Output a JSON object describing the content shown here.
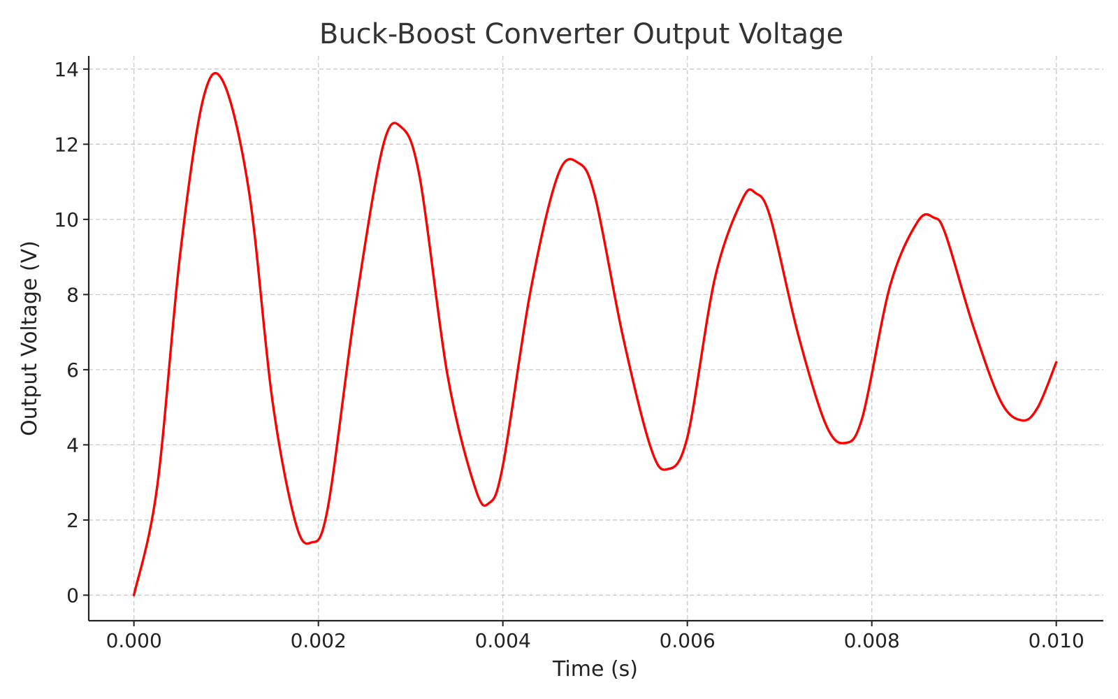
{
  "chart_data": {
    "type": "line",
    "title": "Buck-Boost Converter Output Voltage",
    "xlabel": "Time (s)",
    "ylabel": "Output Voltage (V)",
    "xlim": [
      -0.00049,
      0.01051
    ],
    "ylim": [
      -0.68,
      14.35
    ],
    "x_ticks": [
      0.0,
      0.002,
      0.004,
      0.006,
      0.008,
      0.01
    ],
    "x_tick_labels": [
      "0.000",
      "0.002",
      "0.004",
      "0.006",
      "0.008",
      "0.010"
    ],
    "y_ticks": [
      0,
      2,
      4,
      6,
      8,
      10,
      12,
      14
    ],
    "y_tick_labels": [
      "0",
      "2",
      "4",
      "6",
      "8",
      "10",
      "12",
      "14"
    ],
    "grid": true,
    "series": [
      {
        "color": "#ff0000",
        "x": [
          0.0,
          0.00025,
          0.0005,
          0.00075,
          0.00097,
          0.00125,
          0.0015,
          0.00175,
          0.00192,
          0.0021,
          0.0024,
          0.0027,
          0.0029,
          0.0031,
          0.0034,
          0.0037,
          0.00385,
          0.004,
          0.0043,
          0.0046,
          0.00482,
          0.005,
          0.0053,
          0.0056,
          0.00578,
          0.006,
          0.0063,
          0.0066,
          0.00674,
          0.0069,
          0.0072,
          0.0075,
          0.00771,
          0.0079,
          0.0082,
          0.0085,
          0.00867,
          0.0088,
          0.0091,
          0.0094,
          0.00963,
          0.0098,
          0.01
        ],
        "y": [
          0.0,
          2.85,
          9.05,
          13.2,
          13.65,
          10.7,
          5.2,
          1.95,
          1.4,
          2.3,
          7.65,
          11.95,
          12.45,
          11.1,
          5.85,
          2.85,
          2.45,
          3.45,
          8.1,
          11.2,
          11.5,
          10.6,
          6.9,
          3.95,
          3.35,
          4.2,
          8.45,
          10.55,
          10.7,
          10.05,
          6.95,
          4.55,
          4.05,
          4.75,
          8.25,
          9.95,
          10.05,
          9.6,
          7.15,
          5.15,
          4.65,
          5.0,
          6.2
        ]
      }
    ]
  }
}
